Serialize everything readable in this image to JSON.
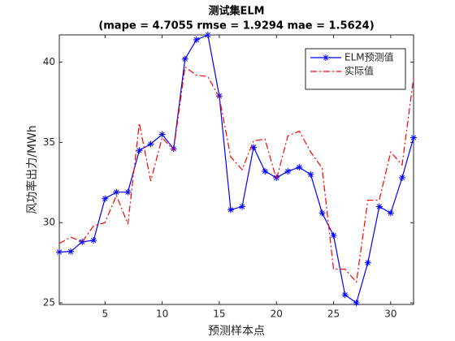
{
  "chart_data": {
    "type": "line",
    "title": "测试集ELM",
    "subtitle": "(mape = 4.7055 rmse = 1.9294 mae = 1.5624)",
    "x_label": "预测样本点",
    "y_label": "风功率出力/MWh",
    "x": [
      1,
      2,
      3,
      4,
      5,
      6,
      7,
      8,
      9,
      10,
      11,
      12,
      13,
      14,
      15,
      16,
      17,
      18,
      19,
      20,
      21,
      22,
      23,
      24,
      25,
      26,
      27,
      28,
      29,
      30,
      31,
      32
    ],
    "series": [
      {
        "name": "ELM预测值",
        "color": "#0000ff",
        "marker": "star",
        "linestyle": "solid",
        "values": [
          28.17,
          28.2,
          28.8,
          28.9,
          31.5,
          31.9,
          31.9,
          34.5,
          34.9,
          35.5,
          34.6,
          40.2,
          41.4,
          41.7,
          37.9,
          30.8,
          31.0,
          34.7,
          33.2,
          32.8,
          33.2,
          33.45,
          33.0,
          30.6,
          29.2,
          25.5,
          25.0,
          27.5,
          31.0,
          30.6,
          32.8,
          35.3
        ]
      },
      {
        "name": "实际值",
        "color": "#ff0000",
        "marker": "none",
        "linestyle": "dashdot",
        "values": [
          28.7,
          29.1,
          28.8,
          29.8,
          30.0,
          31.7,
          29.9,
          36.2,
          32.6,
          35.3,
          34.5,
          39.7,
          39.2,
          39.1,
          37.8,
          34.1,
          33.3,
          35.1,
          35.2,
          32.7,
          35.4,
          35.7,
          34.4,
          33.4,
          27.1,
          27.1,
          26.3,
          31.4,
          31.4,
          34.4,
          33.6,
          39.0
        ]
      }
    ],
    "xlim": [
      1,
      32
    ],
    "xticks": [
      5,
      10,
      15,
      20,
      25,
      30
    ],
    "ylim": [
      24.9,
      41.7
    ],
    "yticks": [
      25,
      30,
      35,
      40
    ],
    "grid": false,
    "legend": "northeast"
  }
}
